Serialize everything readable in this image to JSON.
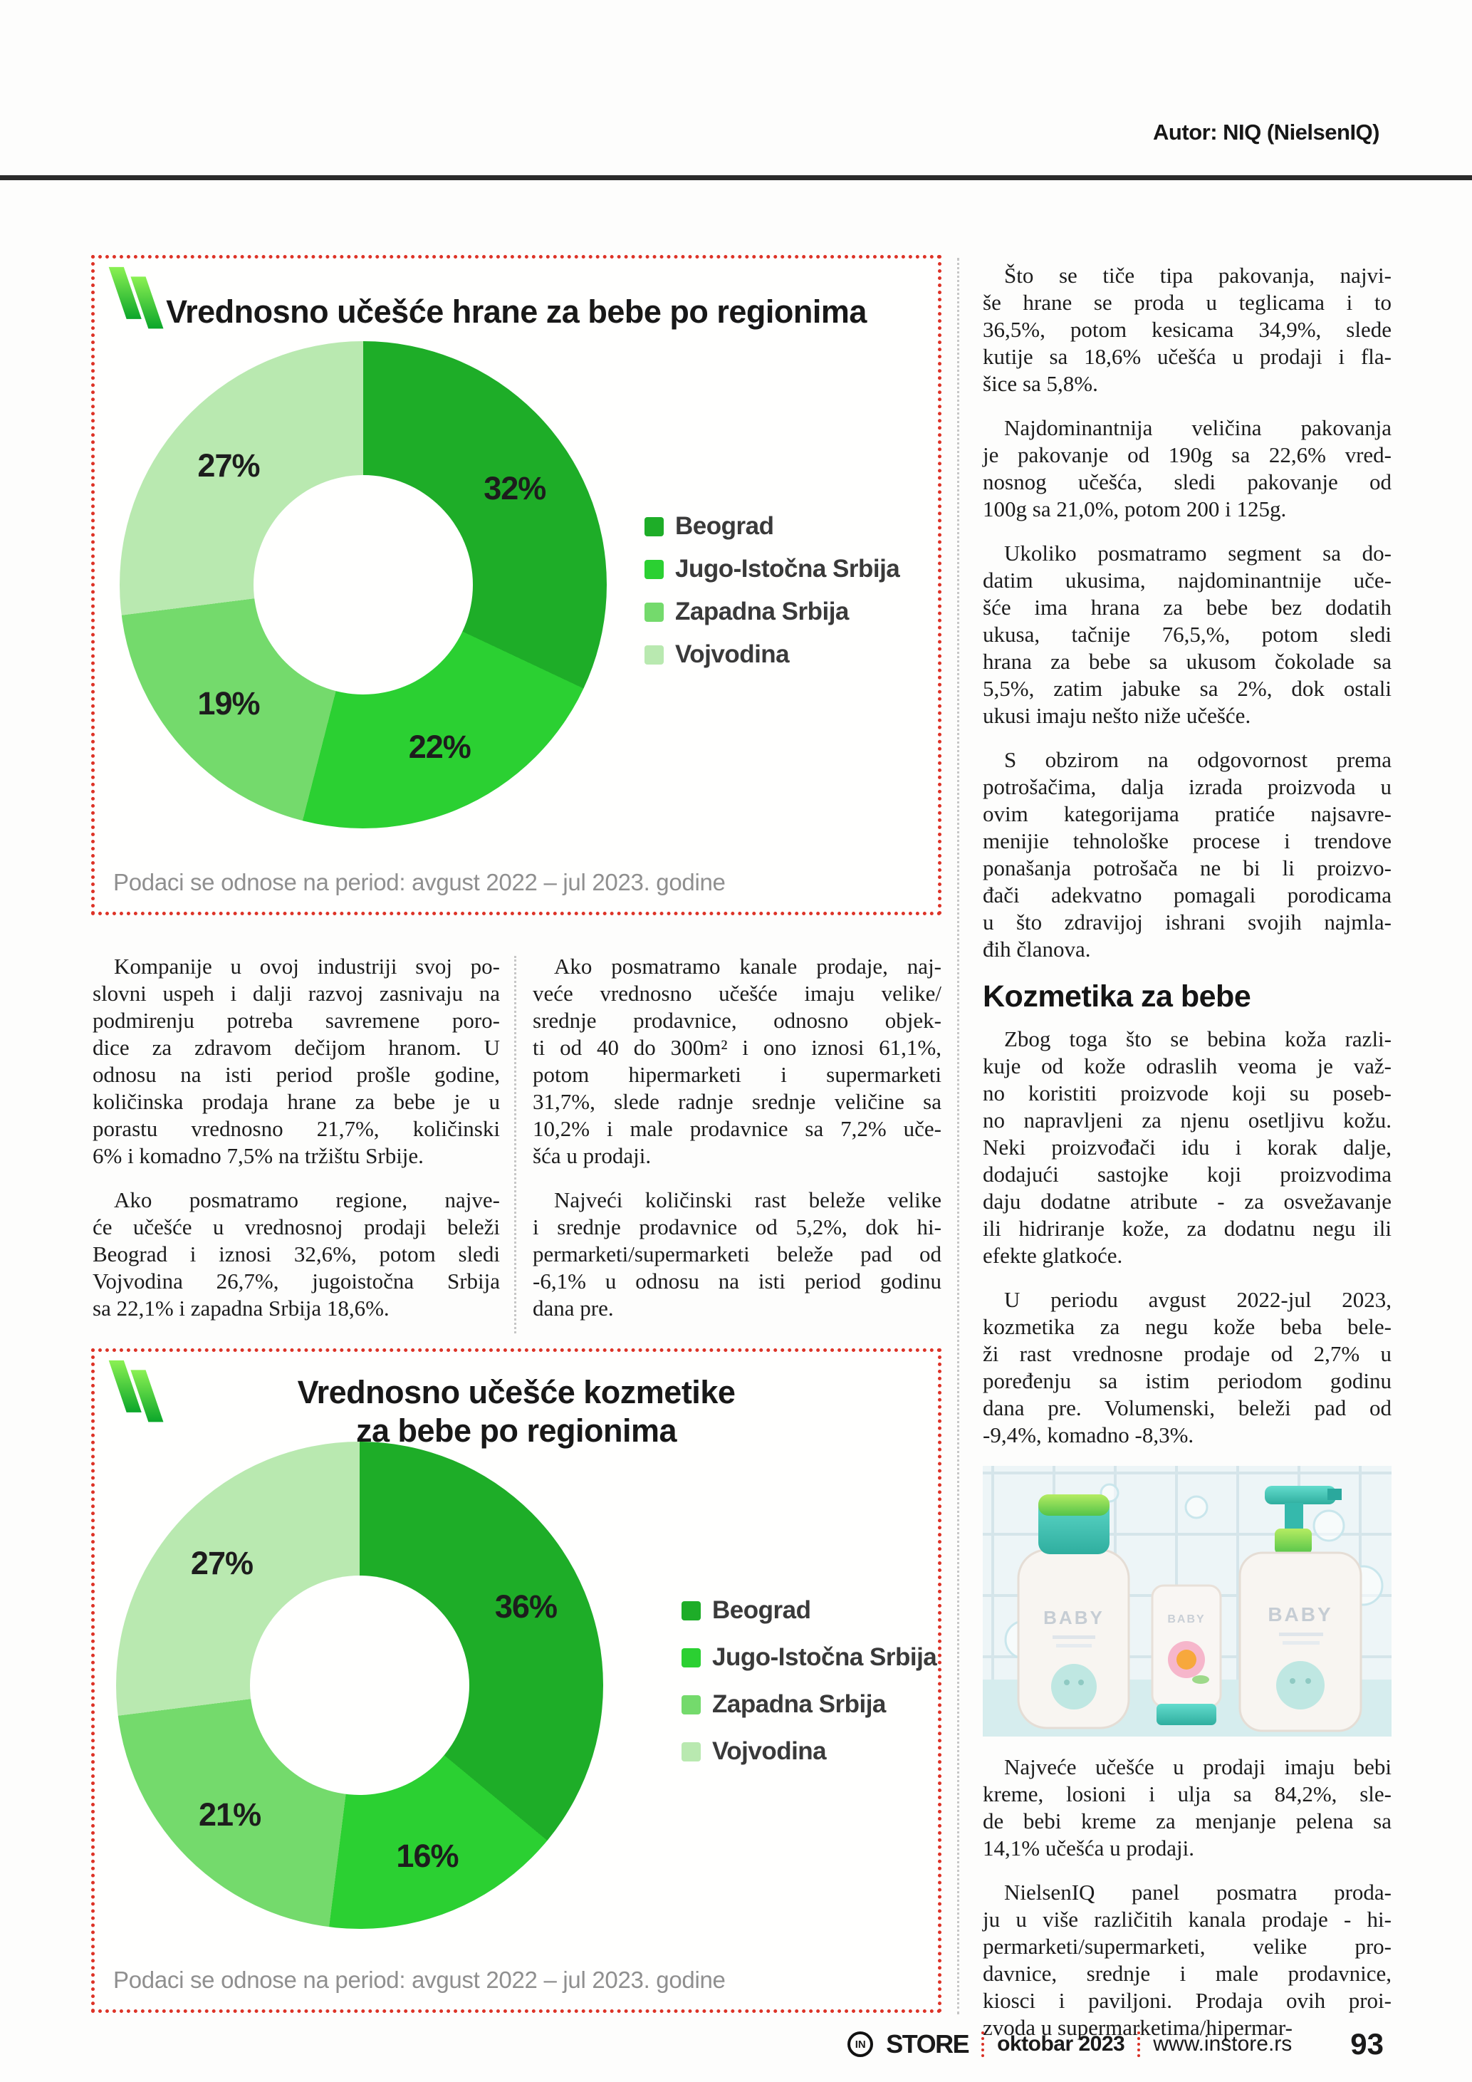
{
  "header": {
    "author": "Autor: NIQ (NielsenIQ)"
  },
  "colors": {
    "accent_red": "#dd3327",
    "rule_dark": "#2b2b2b",
    "caption_gray": "#8f8f8f",
    "body_text": "#1c1c1c",
    "divider_gray": "#c6c6c6",
    "flash_green_light": "#8bf153",
    "flash_green_dark": "#0ba62a"
  },
  "chart_data": [
    {
      "type": "pie",
      "variant": "donut",
      "title": "Vrednosno učešće hrane za bebe po regionima",
      "title_lines": [
        "Vrednosno učešće hrane za bebe po regionima"
      ],
      "categories": [
        "Beograd",
        "Jugo-Istočna Srbija",
        "Zapadna Srbija",
        "Vojvodina"
      ],
      "values": [
        32,
        22,
        19,
        27
      ],
      "labels": [
        "32%",
        "22%",
        "19%",
        "27%"
      ],
      "colors": [
        "#1ead28",
        "#2bd032",
        "#74da6c",
        "#b9e9b0"
      ],
      "start_angle_deg": 0,
      "direction": "clockwise",
      "legend_position": "right",
      "note": "Podaci se odnose na period: avgust 2022 – jul 2023. godine"
    },
    {
      "type": "pie",
      "variant": "donut",
      "title": "Vrednosno učešće kozmetike za bebe po regionima",
      "title_lines": [
        "Vrednosno učešće kozmetike",
        "za bebe po regionima"
      ],
      "categories": [
        "Beograd",
        "Jugo-Istočna Srbija",
        "Zapadna Srbija",
        "Vojvodina"
      ],
      "values": [
        36,
        16,
        21,
        27
      ],
      "labels": [
        "36%",
        "16%",
        "21%",
        "27%"
      ],
      "colors": [
        "#1ead28",
        "#2bd032",
        "#74da6c",
        "#b9e9b0"
      ],
      "start_angle_deg": 0,
      "direction": "clockwise",
      "legend_position": "right",
      "note": "Podaci se odnose na period: avgust 2022 – jul 2023. godine"
    }
  ],
  "columns": {
    "left": [
      {
        "type": "paragraph",
        "lines": [
          "Kompanije u ovoj industriji svoj po-",
          "slovni uspeh i dalji razvoj zasnivaju na",
          "podmirenju potreba savremene poro-",
          "dice za zdravom dečijom hranom. U",
          "odnosu na isti period prošle godine,",
          "količinska prodaja hrane za bebe je u",
          "porastu vrednosno 21,7%, količinski",
          "6% i komadno 7,5% na tržištu Srbije."
        ]
      },
      {
        "type": "paragraph",
        "lines": [
          "Ako posmatramo regione, najve-",
          "će učešće u vrednosnoj prodaji beleži",
          "Beograd i iznosi 32,6%, potom sledi",
          "Vojvodina 26,7%, jugoistočna Srbija",
          "sa 22,1% i zapadna Srbija 18,6%."
        ]
      }
    ],
    "middle": [
      {
        "type": "paragraph",
        "lines": [
          "Ako posmatramo kanale prodaje, naj-",
          "veće vrednosno učešće imaju velike/",
          "srednje prodavnice, odnosno objek-",
          "ti od 40 do 300m² i ono iznosi 61,1%,",
          "potom hipermarketi i supermarketi",
          "31,7%, slede radnje srednje veličine sa",
          "10,2% i male prodavnice sa 7,2% uče-",
          "šća u prodaji."
        ]
      },
      {
        "type": "paragraph",
        "lines": [
          "Najveći količinski rast beleže velike",
          "i srednje prodavnice od 5,2%, dok hi-",
          "permarketi/supermarketi beleže pad od",
          "-6,1% u odnosu na isti period godinu",
          "dana pre."
        ]
      }
    ],
    "right": [
      {
        "type": "paragraph",
        "lines": [
          "Što se tiče tipa pakovanja, najvi-",
          "še hrane se proda u teglicama i to",
          "36,5%, potom kesicama 34,9%, slede",
          "kutije sa 18,6% učešća u prodaji i fla-",
          "šice sa 5,8%."
        ]
      },
      {
        "type": "paragraph",
        "lines": [
          "Najdominantnija veličina pakovanja",
          "je pakovanje od 190g sa 22,6% vred-",
          "nosnog učešća, sledi pakovanje od",
          "100g sa 21,0%, potom 200 i 125g."
        ]
      },
      {
        "type": "paragraph",
        "lines": [
          "Ukoliko posmatramo segment sa do-",
          "datim ukusima, najdominantnije uče-",
          "šće ima hrana za bebe bez dodatih",
          "ukusa, tačnije 76,5,%, potom sledi",
          "hrana za bebe sa ukusom čokolade sa",
          "5,5%, zatim jabuke sa 2%, dok ostali",
          "ukusi imaju nešto niže učešće."
        ]
      },
      {
        "type": "paragraph",
        "lines": [
          "S obzirom na odgovornost prema",
          "potrošačima, dalja izrada proizvoda u",
          "ovim kategorijama pratiće najsavre-",
          "menijie tehnološke procese i trendove",
          "ponašanja potrošača ne bi li proizvo-",
          "đači adekvatno pomagali porodicama",
          "u što zdravijoj ishrani svojih najmla-",
          "đih članova."
        ]
      },
      {
        "type": "heading",
        "text": "Kozmetika za bebe"
      },
      {
        "type": "paragraph",
        "lines": [
          "Zbog toga što se bebina koža razli-",
          "kuje od kože odraslih veoma je važ-",
          "no koristiti proizvode koji su poseb-",
          "no napravljeni za njenu osetljivu kožu.",
          "Neki proizvođači idu i korak dalje,",
          "dodajući sastojke koji proizvodima",
          "daju dodatne atribute - za osvežavanje",
          "ili hidriranje kože, za dodatnu negu ili",
          "efekte glatkoće."
        ]
      },
      {
        "type": "paragraph",
        "lines": [
          "U periodu avgust 2022-jul 2023,",
          "kozmetika za negu kože beba bele-",
          "ži rast vrednosne prodaje od 2,7% u",
          "poređenju sa istim periodom godinu",
          "dana pre. Volumenski, beleži pad od",
          "-9,4%, komadno -8,3%."
        ]
      },
      {
        "type": "image",
        "description": "bebi kozmetika – tri flašice u kupatilu",
        "bottle_label": "BABY"
      },
      {
        "type": "paragraph",
        "lines": [
          "Najveće učešće u prodaji imaju bebi",
          "kreme, losioni i ulja sa 84,2%, sle-",
          "de bebi kreme za menjanje pelena sa",
          "14,1% učešća u prodaji."
        ]
      },
      {
        "type": "paragraph",
        "lines": [
          "NielsenIQ panel posmatra proda-",
          "ju u više različitih kanala prodaje - hi-",
          "permarketi/supermarketi, velike pro-",
          "davnice, srednje i male prodavnice,",
          "kiosci i paviljoni. Prodaja ovih proi-",
          "zvoda u supermarketima/hipermar-"
        ]
      }
    ]
  },
  "footer": {
    "logo_text": "IN",
    "brand": "STORE",
    "issue": "oktobar 2023",
    "website": "www.instore.rs",
    "page_number": "93"
  }
}
